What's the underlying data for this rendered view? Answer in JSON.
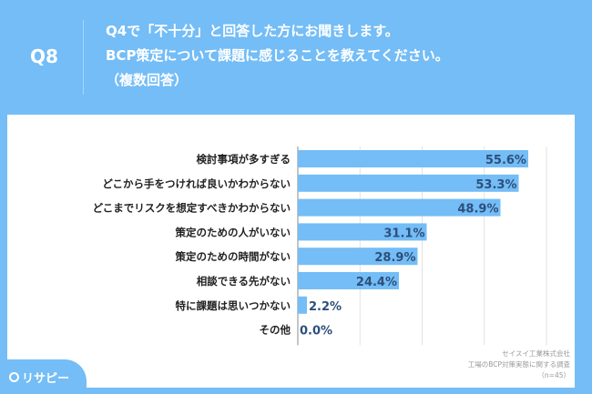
{
  "header": {
    "question_number": "Q8",
    "title_lines": [
      "Q4で「不十分」と回答した方にお聞きします。",
      "BCP策定について課題に感じることを教えてください。",
      "（複数回答）"
    ]
  },
  "chart_data": {
    "type": "bar",
    "orientation": "horizontal",
    "categories": [
      "検討事項が多すぎる",
      "どこから手をつければ良いかわからない",
      "どこまでリスクを想定すべきかわからない",
      "策定のための人がいない",
      "策定のための時間がない",
      "相談できる先がない",
      "特に課題は思いつかない",
      "その他"
    ],
    "values": [
      55.6,
      53.3,
      48.9,
      31.1,
      28.9,
      24.4,
      2.2,
      0.0
    ],
    "data_labels": [
      "55.6%",
      "53.3%",
      "48.9%",
      "31.1%",
      "28.9%",
      "24.4%",
      "2.2%",
      "0.0%"
    ],
    "xlim": [
      0,
      60
    ],
    "grid": true,
    "bar_color": "#74bdf6",
    "label_color": "#2d4f7c"
  },
  "source": {
    "lines": [
      "セイスイ工業株式会社",
      "工場のBCP対策実態に関する調査",
      "（n=45）"
    ]
  },
  "logo": {
    "text": "リサピー"
  }
}
